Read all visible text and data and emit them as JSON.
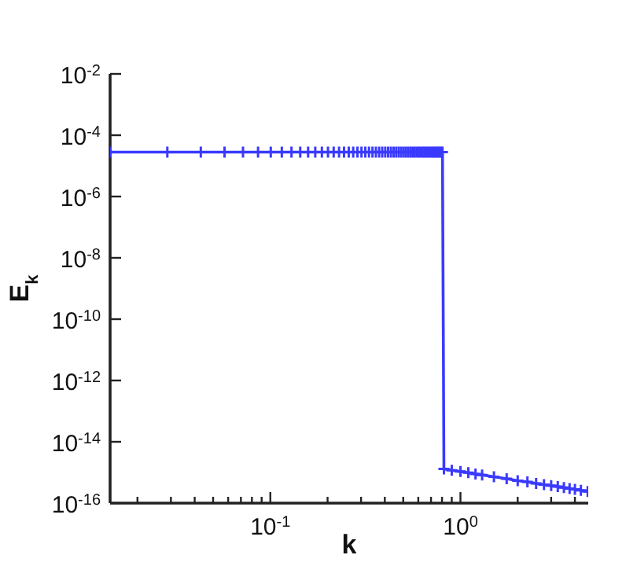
{
  "chart_data": {
    "type": "line",
    "xlabel": "k",
    "ylabel": "E$_{k}$",
    "log": "xy",
    "marker": "cross",
    "line_style": "solid",
    "xlim": [
      0.01436,
      4.7
    ],
    "ylim": [
      1e-16,
      0.01
    ],
    "xticks": [
      {
        "value": 0.02,
        "label": null
      },
      {
        "value": 0.03,
        "label": null
      },
      {
        "value": 0.04,
        "label": null
      },
      {
        "value": 0.05,
        "label": null
      },
      {
        "value": 0.06,
        "label": null
      },
      {
        "value": 0.07,
        "label": null
      },
      {
        "value": 0.08,
        "label": null
      },
      {
        "value": 0.09,
        "label": null
      },
      {
        "value": 0.1,
        "label": "10$^{-1}$"
      },
      {
        "value": 0.2,
        "label": null
      },
      {
        "value": 0.3,
        "label": null
      },
      {
        "value": 0.4,
        "label": null
      },
      {
        "value": 0.5,
        "label": null
      },
      {
        "value": 0.6,
        "label": null
      },
      {
        "value": 0.7,
        "label": null
      },
      {
        "value": 0.8,
        "label": null
      },
      {
        "value": 0.9,
        "label": null
      },
      {
        "value": 1,
        "label": "10$^{0}$"
      },
      {
        "value": 2,
        "label": null
      },
      {
        "value": 3,
        "label": null
      },
      {
        "value": 4,
        "label": null
      }
    ],
    "yticks": [
      {
        "value": 1e-16,
        "label": "10$^{-16}$"
      },
      {
        "value": 1e-14,
        "label": "10$^{-14}$"
      },
      {
        "value": 1e-12,
        "label": "10$^{-12}$"
      },
      {
        "value": 1e-10,
        "label": "10$^{-10}$"
      },
      {
        "value": 1e-08,
        "label": "10$^{-8}$"
      },
      {
        "value": 1e-06,
        "label": "10$^{-6}$"
      },
      {
        "value": 0.0001,
        "label": "10$^{-4}$"
      },
      {
        "value": 0.01,
        "label": "10$^{-2}$"
      }
    ],
    "series": [
      {
        "color": "#3a3aff",
        "x": [
          0.01436,
          0.02872,
          0.04308,
          0.05744,
          0.0718,
          0.08616,
          0.1005,
          0.1149,
          0.1292,
          0.1436,
          0.158,
          0.1723,
          0.1867,
          0.201,
          0.2154,
          0.2298,
          0.2441,
          0.2585,
          0.2728,
          0.2872,
          0.3016,
          0.3159,
          0.3303,
          0.3446,
          0.359,
          0.3734,
          0.3877,
          0.4021,
          0.4164,
          0.4308,
          0.4452,
          0.4595,
          0.4739,
          0.4882,
          0.5026,
          0.517,
          0.5313,
          0.5457,
          0.56,
          0.5744,
          0.5888,
          0.6031,
          0.6175,
          0.6318,
          0.6462,
          0.6606,
          0.6749,
          0.6893,
          0.7036,
          0.718,
          0.7324,
          0.7467,
          0.7611,
          0.7754,
          0.7898,
          0.8042,
          0.8185,
          0.9,
          1.0,
          1.1,
          1.2,
          1.3,
          1.5,
          1.75,
          2.0,
          2.25,
          2.5,
          2.75,
          3.0,
          3.25,
          3.5,
          3.75,
          4.0,
          4.3,
          4.67
        ],
        "values": [
          2.8e-05,
          2.8e-05,
          2.8e-05,
          2.8e-05,
          2.8e-05,
          2.8e-05,
          2.8e-05,
          2.8e-05,
          2.8e-05,
          2.8e-05,
          2.8e-05,
          2.8e-05,
          2.8e-05,
          2.8e-05,
          2.8e-05,
          2.8e-05,
          2.8e-05,
          2.8e-05,
          2.8e-05,
          2.8e-05,
          2.8e-05,
          2.8e-05,
          2.8e-05,
          2.8e-05,
          2.8e-05,
          2.8e-05,
          2.8e-05,
          2.8e-05,
          2.8e-05,
          2.8e-05,
          2.8e-05,
          2.8e-05,
          2.8e-05,
          2.8e-05,
          2.8e-05,
          2.8e-05,
          2.8e-05,
          2.8e-05,
          2.8e-05,
          2.8e-05,
          2.8e-05,
          2.8e-05,
          2.8e-05,
          2.8e-05,
          2.8e-05,
          2.8e-05,
          2.8e-05,
          2.8e-05,
          2.8e-05,
          2.8e-05,
          2.8e-05,
          2.8e-05,
          2.8e-05,
          2.8e-05,
          2.8e-05,
          2.8e-05,
          1.3e-15,
          1.18e-15,
          1.07e-15,
          9.8e-16,
          8.9e-16,
          8.3e-16,
          7.2e-16,
          6.2e-16,
          5.4e-16,
          4.9e-16,
          4.4e-16,
          4e-16,
          3.7e-16,
          3.45e-16,
          3.2e-16,
          3e-16,
          2.8e-16,
          2.6e-16,
          2.4e-16
        ]
      }
    ]
  }
}
